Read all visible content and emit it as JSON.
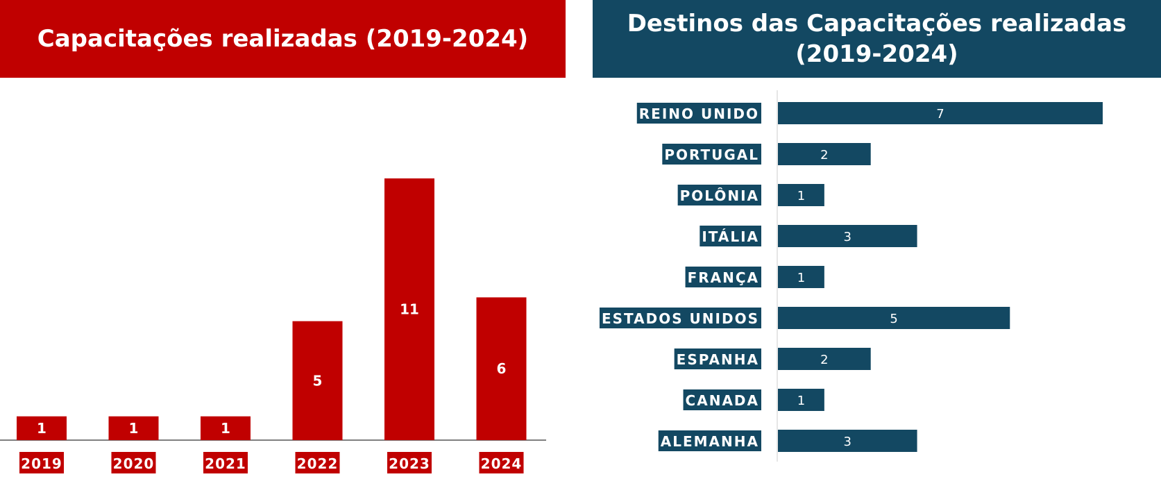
{
  "colors": {
    "red": "#C00000",
    "blue": "#134862"
  },
  "chart_data": [
    {
      "type": "bar",
      "title": "Capacitações realizadas  (2019-2024)",
      "categories": [
        "2019",
        "2020",
        "2021",
        "2022",
        "2023",
        "2024"
      ],
      "values": [
        1,
        1,
        1,
        5,
        11,
        6
      ],
      "xlabel": "",
      "ylabel": "",
      "ylim": [
        0,
        11
      ],
      "grid": false
    },
    {
      "type": "bar",
      "orientation": "horizontal",
      "title": "Destinos das Capacitações realizadas (2019-2024)",
      "categories": [
        "REINO UNIDO",
        "PORTUGAL",
        "POLÔNIA",
        "ITÁLIA",
        "FRANÇA",
        "ESTADOS UNIDOS",
        "ESPANHA",
        "CANADA",
        "ALEMANHA"
      ],
      "values": [
        7,
        2,
        1,
        3,
        1,
        5,
        2,
        1,
        3
      ],
      "xlabel": "",
      "ylabel": "",
      "xlim": [
        0,
        7
      ],
      "grid": false
    }
  ]
}
